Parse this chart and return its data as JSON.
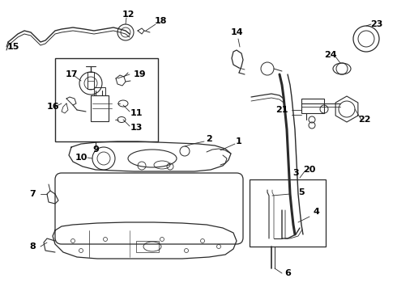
{
  "bg_color": "#ffffff",
  "line_color": "#2a2a2a",
  "text_color": "#000000",
  "fig_width": 4.9,
  "fig_height": 3.6,
  "dpi": 100
}
